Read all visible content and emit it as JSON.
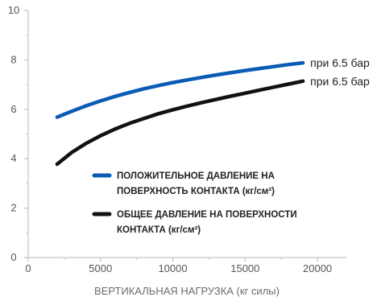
{
  "chart_data": {
    "type": "line",
    "xlabel": "ВЕРТИКАЛЬНАЯ НАГРУЗКА (кг силы)",
    "ylabel": "",
    "xlim": [
      0,
      22000
    ],
    "ylim": [
      0,
      10
    ],
    "x_ticks": [
      "0",
      "5000",
      "10000",
      "15000",
      "20000"
    ],
    "y_ticks": [
      "0",
      "2",
      "4",
      "6",
      "8",
      "10"
    ],
    "series": [
      {
        "name": "ПОЛОЖИТЕЛЬНОЕ ДАВЛЕНИЕ НА ПОВЕРХНОСТЬ КОНТАКТА (кг/см²)",
        "legend_lines": [
          "ПОЛОЖИТЕЛЬНОЕ ДАВЛЕНИЕ НА",
          "ПОВЕРХНОСТЬ КОНТАКТА (кг/см²)"
        ],
        "color": "#0a5bb5",
        "end_label": "при 6.5 бар",
        "x": [
          2000,
          3000,
          4000,
          5000,
          6000,
          7000,
          8000,
          9000,
          10000,
          11000,
          12000,
          13000,
          14000,
          15000,
          16000,
          17000,
          18000,
          19000
        ],
        "y": [
          5.68,
          5.92,
          6.14,
          6.34,
          6.52,
          6.68,
          6.83,
          6.96,
          7.08,
          7.19,
          7.29,
          7.39,
          7.48,
          7.57,
          7.65,
          7.73,
          7.81,
          7.88
        ]
      },
      {
        "name": "ОБЩЕЕ ДАВЛЕНИЕ НА ПОВЕРХНОСТИ КОНТАКТА (кг/см²)",
        "legend_lines": [
          "ОБЩЕЕ ДАВЛЕНИЕ НА ПОВЕРХНОСТИ",
          "КОНТАКТА (кг/см²)"
        ],
        "color": "#111111",
        "end_label": "при 6.5 бар",
        "x": [
          2000,
          3000,
          4000,
          5000,
          6000,
          7000,
          8000,
          9000,
          10000,
          11000,
          12000,
          13000,
          14000,
          15000,
          16000,
          17000,
          18000,
          19000
        ],
        "y": [
          3.78,
          4.25,
          4.62,
          4.93,
          5.2,
          5.43,
          5.63,
          5.82,
          5.98,
          6.13,
          6.27,
          6.4,
          6.53,
          6.65,
          6.78,
          6.9,
          7.02,
          7.14
        ]
      }
    ]
  }
}
